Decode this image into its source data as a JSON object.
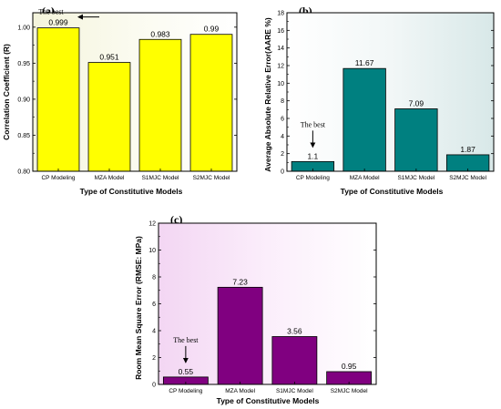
{
  "chart_data": [
    {
      "type": "bar",
      "panel_label": "(a)",
      "categories": [
        "CP Modeling",
        "MZA Model",
        "S1MJC Model",
        "S2MJC Model"
      ],
      "values": [
        0.999,
        0.951,
        0.983,
        0.99
      ],
      "value_labels": [
        "0.999",
        "0.951",
        "0.983",
        "0.99"
      ],
      "ylim": [
        0.8,
        1.02
      ],
      "yticks": [
        "0.80",
        "0.85",
        "0.90",
        "0.95",
        "1.00"
      ],
      "xlabel": "Type of Constitutive Models",
      "ylabel": "Correlation Coefficient (R)",
      "annotation": "The best",
      "annotation_category": "CP Modeling",
      "bar_color": "#ffff00",
      "background_gradient": [
        "#f4f4dc",
        "#fbfbf0",
        "#ffffff"
      ]
    },
    {
      "type": "bar",
      "panel_label": "(b)",
      "categories": [
        "CP Modeling",
        "MZA Model",
        "S1MJC Model",
        "S2MJC Model"
      ],
      "values": [
        1.1,
        11.67,
        7.09,
        1.87
      ],
      "value_labels": [
        "1.1",
        "11.67",
        "7.09",
        "1.87"
      ],
      "ylim": [
        0,
        18
      ],
      "yticks": [
        "0",
        "2",
        "4",
        "6",
        "8",
        "10",
        "12",
        "14",
        "16",
        "18"
      ],
      "xlabel": "Type of Constitutive Models",
      "ylabel": "Average Absolute Relative Error(AARE %)",
      "annotation": "The best",
      "annotation_category": "CP Modeling",
      "bar_color": "#008080",
      "background_gradient": [
        "#ffffff",
        "#f2f7f7",
        "#d8e8e8"
      ]
    },
    {
      "type": "bar",
      "panel_label": "(c)",
      "categories": [
        "CP Modeling",
        "MZA Model",
        "S1MJC Model",
        "S2MJC Model"
      ],
      "values": [
        0.55,
        7.23,
        3.56,
        0.95
      ],
      "value_labels": [
        "0.55",
        "7.23",
        "3.56",
        "0.95"
      ],
      "ylim": [
        0,
        12
      ],
      "yticks": [
        "0",
        "2",
        "4",
        "6",
        "8",
        "10",
        "12"
      ],
      "xlabel": "Type of Constitutive Models",
      "ylabel": "Room Mean Square Error (RMSE: MPa)",
      "annotation": "The best",
      "annotation_category": "CP Modeling",
      "bar_color": "#800080",
      "background_gradient": [
        "#f3d6f3",
        "#fbeefb",
        "#ffffff"
      ]
    }
  ]
}
